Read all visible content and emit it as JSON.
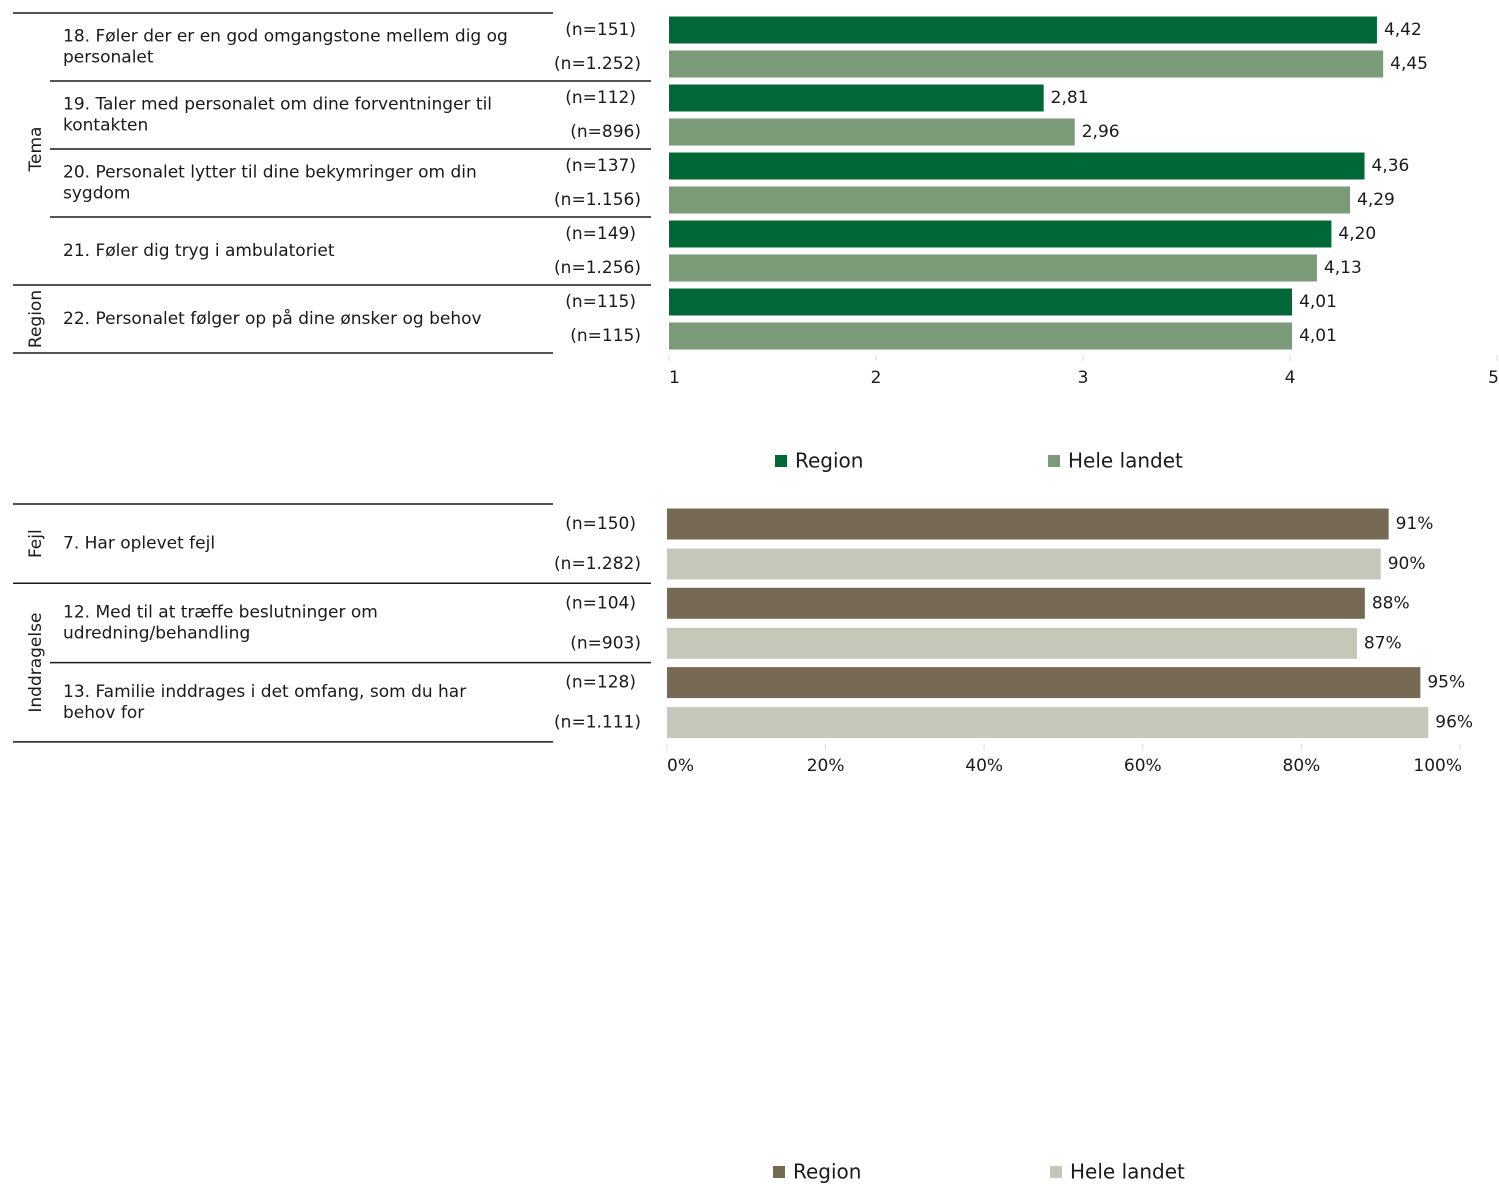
{
  "chart_data": [
    {
      "type": "bar",
      "orientation": "horizontal",
      "xlim": [
        1,
        5
      ],
      "x_ticks": [
        "1",
        "2",
        "3",
        "4",
        "5"
      ],
      "legend": {
        "position": "bottom",
        "items": [
          {
            "label": "Region",
            "color": "#006837"
          },
          {
            "label": "Hele landet",
            "color": "#7a9a78"
          }
        ]
      },
      "groups": [
        {
          "label": "Tema",
          "items": [
            0,
            1,
            2,
            3
          ]
        },
        {
          "label": "Region",
          "items": [
            4
          ]
        }
      ],
      "items": [
        {
          "label": "18. Føler der er en god omgangstone mellem dig og personalet",
          "region": {
            "n": "(n=151)",
            "value": 4.42,
            "label": "4,42"
          },
          "national": {
            "n": "(n=1.252)",
            "value": 4.45,
            "label": "4,45"
          }
        },
        {
          "label": "19. Taler med personalet om dine forventninger til kontakten",
          "region": {
            "n": "(n=112)",
            "value": 2.81,
            "label": "2,81"
          },
          "national": {
            "n": "(n=896)",
            "value": 2.96,
            "label": "2,96"
          }
        },
        {
          "label": "20. Personalet lytter til dine bekymringer om din sygdom",
          "region": {
            "n": "(n=137)",
            "value": 4.36,
            "label": "4,36"
          },
          "national": {
            "n": "(n=1.156)",
            "value": 4.29,
            "label": "4,29"
          }
        },
        {
          "label": "21. Føler dig tryg i ambulatoriet",
          "region": {
            "n": "(n=149)",
            "value": 4.2,
            "label": "4,20"
          },
          "national": {
            "n": "(n=1.256)",
            "value": 4.13,
            "label": "4,13"
          }
        },
        {
          "label": "22. Personalet følger op på dine ønsker og behov",
          "region": {
            "n": "(n=115)",
            "value": 4.01,
            "label": "4,01"
          },
          "national": {
            "n": "(n=115)",
            "value": 4.01,
            "label": "4,01"
          }
        }
      ]
    },
    {
      "type": "bar",
      "orientation": "horizontal",
      "xlim": [
        0,
        100
      ],
      "x_ticks": [
        "0%",
        "20%",
        "40%",
        "60%",
        "80%",
        "100%"
      ],
      "legend": {
        "position": "bottom",
        "items": [
          {
            "label": "Region",
            "color": "#766a55"
          },
          {
            "label": "Hele landet",
            "color": "#c6c7b8"
          }
        ]
      },
      "groups": [
        {
          "label": "Fejl",
          "items": [
            0
          ]
        },
        {
          "label": "Inddragelse",
          "items": [
            1,
            2
          ]
        }
      ],
      "items": [
        {
          "label": "7. Har oplevet fejl",
          "region": {
            "n": "(n=150)",
            "value": 91,
            "label": "91%"
          },
          "national": {
            "n": "(n=1.282)",
            "value": 90,
            "label": "90%"
          }
        },
        {
          "label": "12. Med til at træffe beslutninger om udredning/behandling",
          "region": {
            "n": "(n=104)",
            "value": 88,
            "label": "88%"
          },
          "national": {
            "n": "(n=903)",
            "value": 87,
            "label": "87%"
          }
        },
        {
          "label": "13. Familie inddrages i det omfang, som du har behov for",
          "region": {
            "n": "(n=128)",
            "value": 95,
            "label": "95%"
          },
          "national": {
            "n": "(n=1.111)",
            "value": 96,
            "label": "96%"
          }
        }
      ]
    }
  ]
}
